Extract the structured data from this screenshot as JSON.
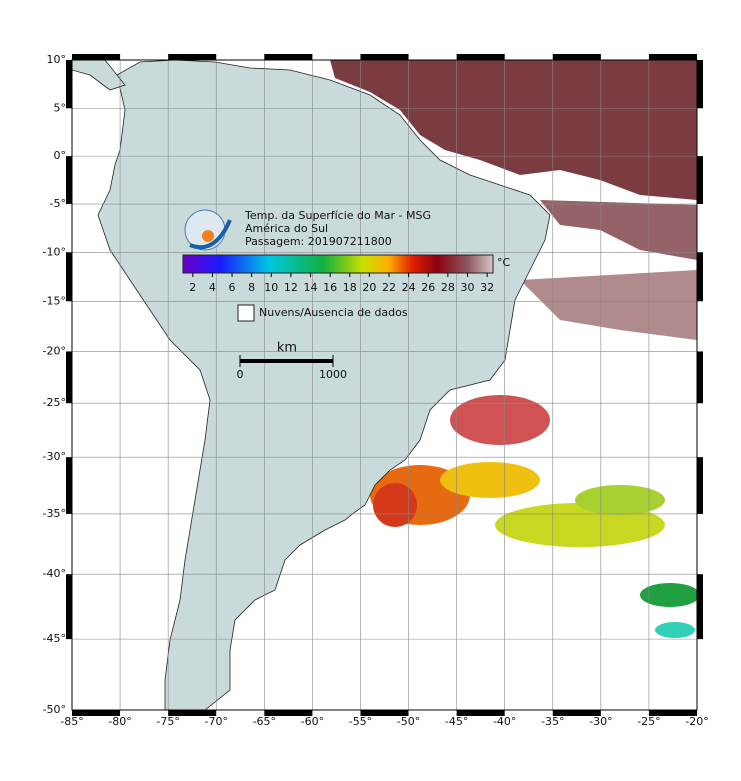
{
  "map": {
    "lonlim": [
      -85,
      -20
    ],
    "latlim": [
      -50,
      10
    ],
    "lonticks": [
      {
        "value": -85,
        "label": "-85°"
      },
      {
        "value": -80,
        "label": "-80°"
      },
      {
        "value": -75,
        "label": "-75°"
      },
      {
        "value": -70,
        "label": "-70°"
      },
      {
        "value": -65,
        "label": "-65°"
      },
      {
        "value": -60,
        "label": "-60°"
      },
      {
        "value": -55,
        "label": "-55°"
      },
      {
        "value": -50,
        "label": "-50°"
      },
      {
        "value": -45,
        "label": "-45°"
      },
      {
        "value": -40,
        "label": "-40°"
      },
      {
        "value": -35,
        "label": "-35°"
      },
      {
        "value": -30,
        "label": "-30°"
      },
      {
        "value": -25,
        "label": "-25°"
      },
      {
        "value": -20,
        "label": "-20°"
      }
    ],
    "latticks": [
      {
        "value": 10,
        "label": "10°"
      },
      {
        "value": 5,
        "label": "5°"
      },
      {
        "value": 0,
        "label": "0°"
      },
      {
        "value": -5,
        "label": "-5°"
      },
      {
        "value": -10,
        "label": "-10°"
      },
      {
        "value": -15,
        "label": "-15°"
      },
      {
        "value": -20,
        "label": "-20°"
      },
      {
        "value": -25,
        "label": "-25°"
      },
      {
        "value": -30,
        "label": "-30°"
      },
      {
        "value": -35,
        "label": "-35°"
      },
      {
        "value": -40,
        "label": "-40°"
      },
      {
        "value": -45,
        "label": "-45°"
      },
      {
        "value": -50,
        "label": "-50°"
      }
    ],
    "legend": {
      "title": "Temp. da Superfície do Mar - MSG",
      "region": "América do Sul",
      "pass": "Passagem: 201907211800"
    },
    "colorbar": {
      "range": [
        1,
        32.6
      ],
      "ticks": [
        2,
        4,
        6,
        8,
        10,
        12,
        14,
        16,
        18,
        20,
        22,
        24,
        26,
        28,
        30,
        32
      ],
      "unit": "°C"
    },
    "nodata": "Nuvens/Ausencia de dados",
    "scalebar": {
      "unit": "km",
      "ticks": [
        0,
        1000
      ]
    }
  }
}
